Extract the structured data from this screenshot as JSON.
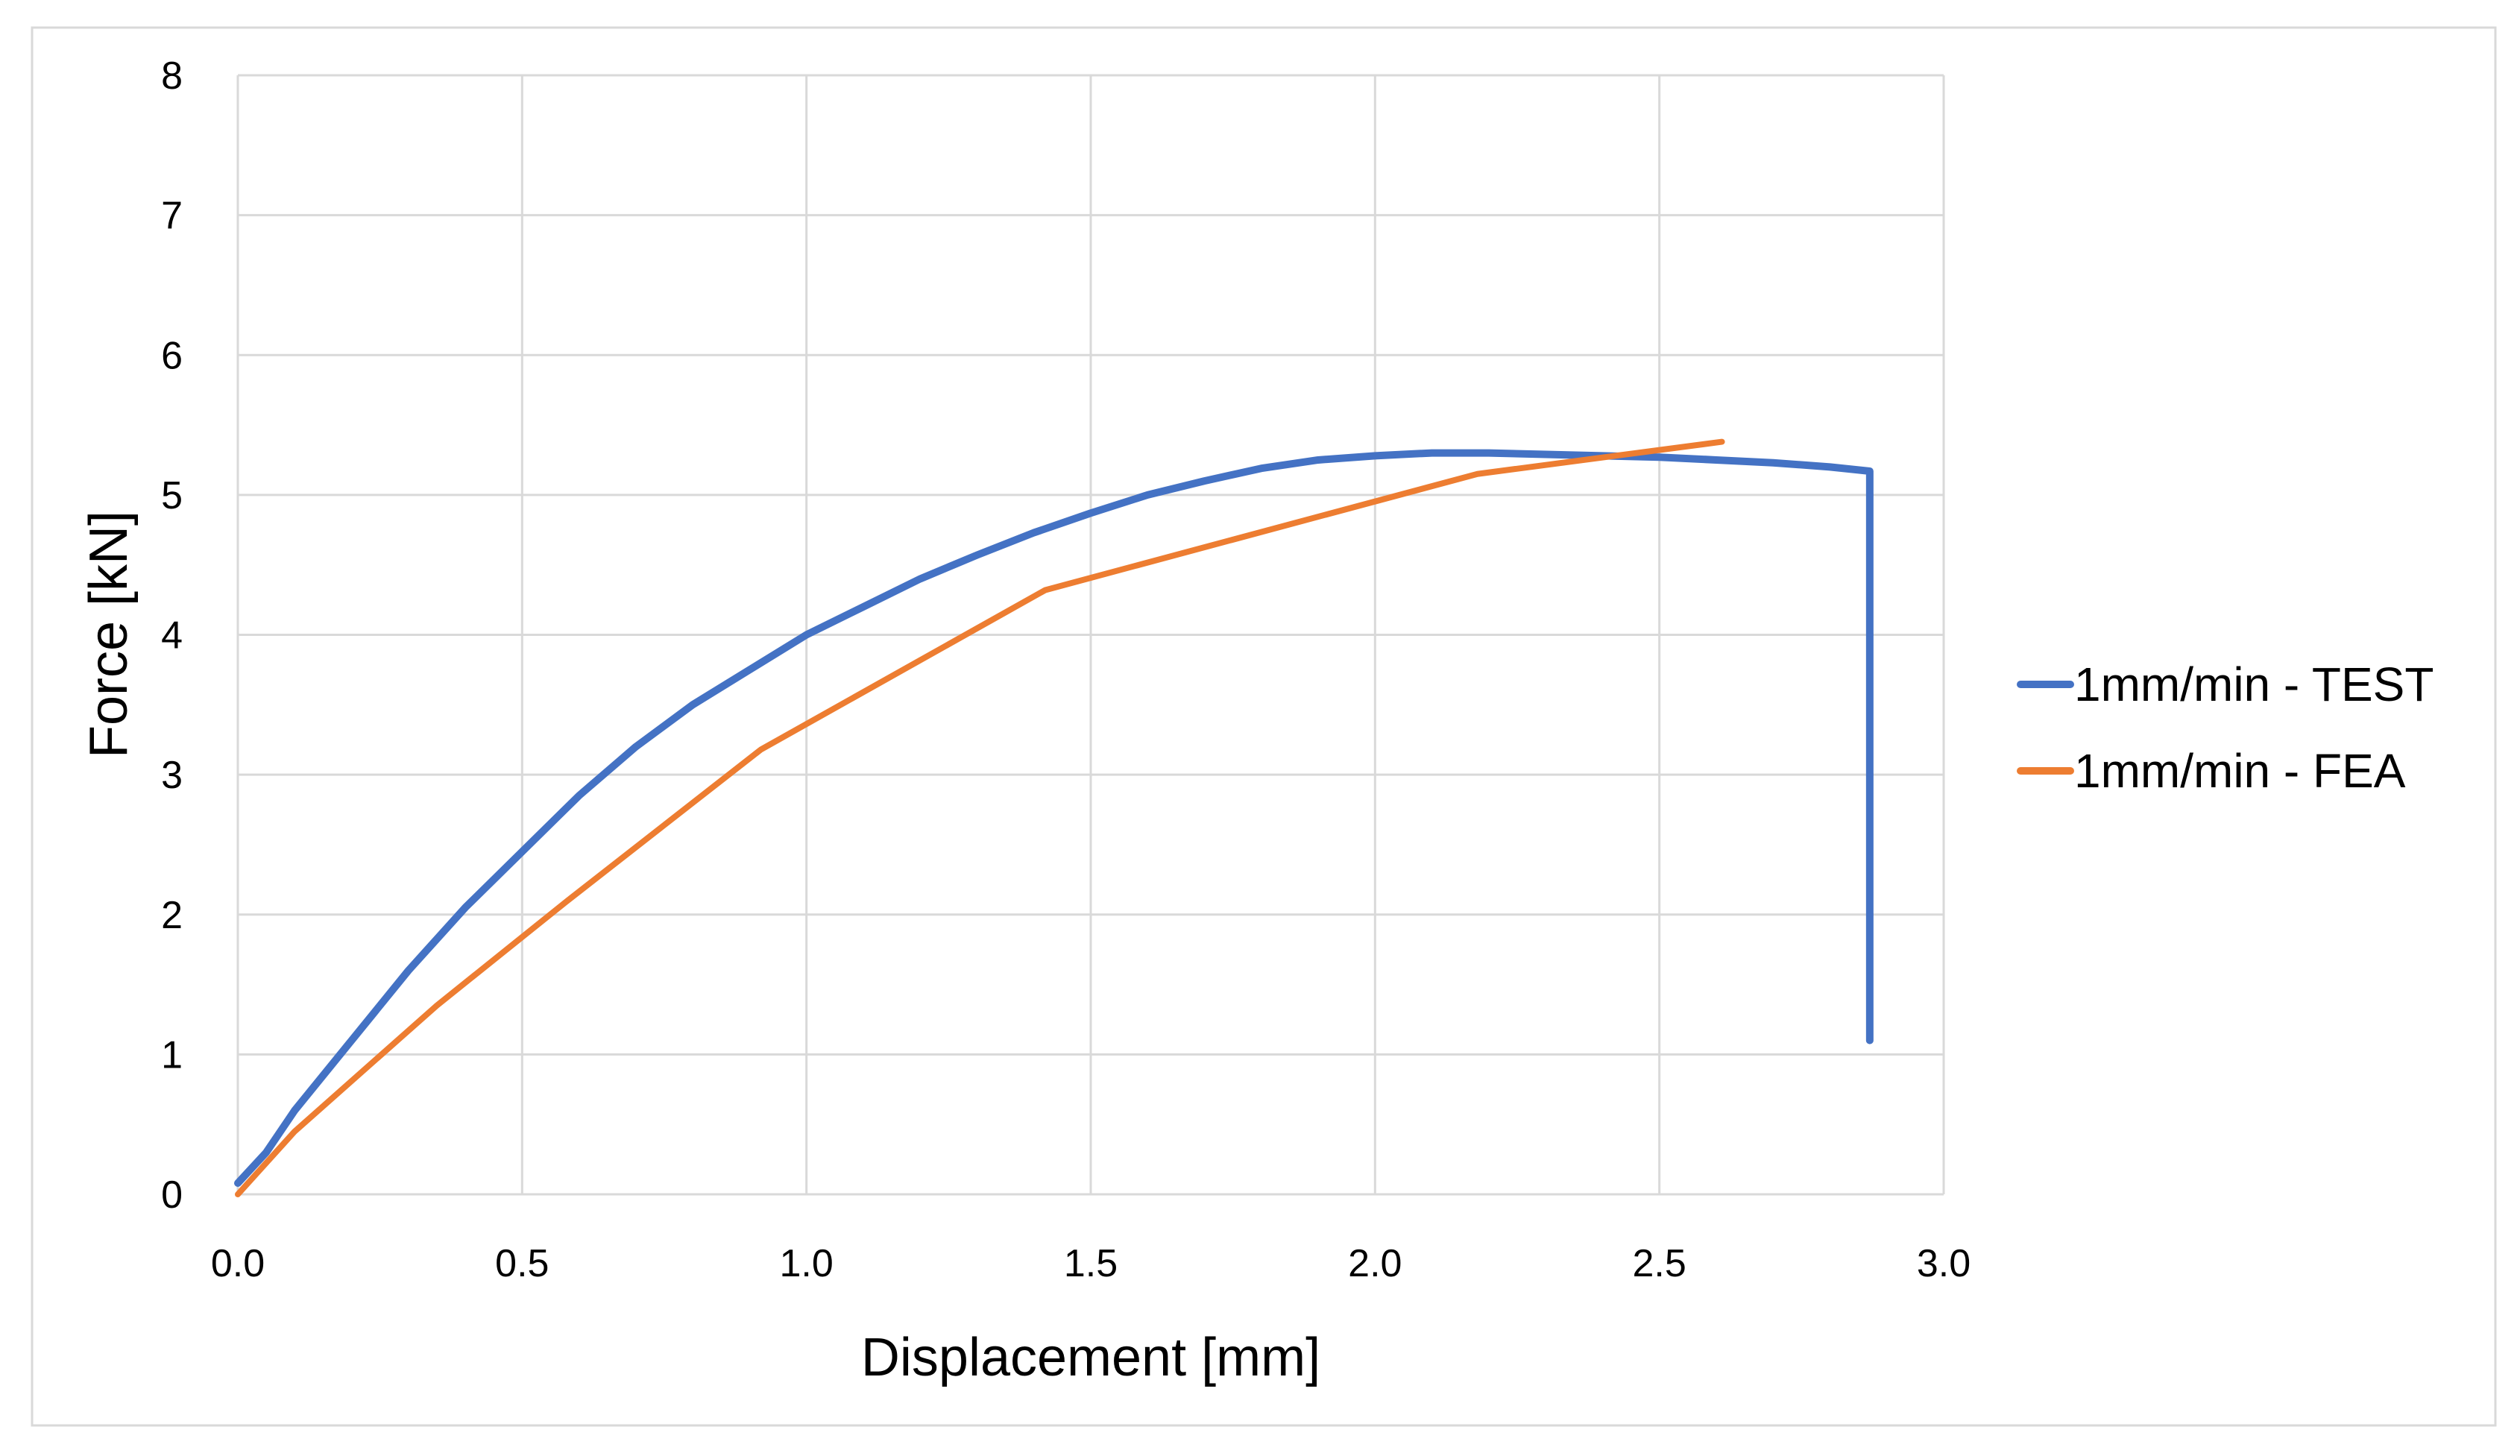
{
  "chart_data": {
    "type": "line",
    "title": "",
    "xlabel": "Displacement [mm]",
    "ylabel": "Force [kN]",
    "xlim": [
      0,
      3.0
    ],
    "ylim": [
      0,
      8
    ],
    "xticks": [
      "0.0",
      "0.5",
      "1.0",
      "1.5",
      "2.0",
      "2.5",
      "3.0"
    ],
    "yticks": [
      "0",
      "1",
      "2",
      "3",
      "4",
      "5",
      "6",
      "7",
      "8"
    ],
    "grid": true,
    "legend_position": "right",
    "series": [
      {
        "name": "1mm/min - TEST",
        "color": "#4472C4",
        "x": [
          0,
          0.05,
          0.1,
          0.2,
          0.3,
          0.4,
          0.5,
          0.6,
          0.7,
          0.8,
          0.9,
          1.0,
          1.1,
          1.2,
          1.3,
          1.4,
          1.5,
          1.6,
          1.7,
          1.8,
          1.9,
          2.0,
          2.1,
          2.2,
          2.3,
          2.4,
          2.5,
          2.6,
          2.7,
          2.8,
          2.87,
          2.87
        ],
        "y": [
          0.08,
          0.3,
          0.6,
          1.1,
          1.6,
          2.05,
          2.45,
          2.85,
          3.2,
          3.5,
          3.75,
          4.0,
          4.2,
          4.4,
          4.57,
          4.73,
          4.87,
          5.0,
          5.1,
          5.19,
          5.25,
          5.28,
          5.3,
          5.3,
          5.29,
          5.28,
          5.27,
          5.25,
          5.23,
          5.2,
          5.17,
          1.1
        ]
      },
      {
        "name": "1mm/min - FEA",
        "color": "#ED7D31",
        "x": [
          0,
          0.1,
          0.35,
          0.58,
          0.92,
          1.42,
          2.18,
          2.61
        ],
        "y": [
          0,
          0.45,
          1.35,
          2.1,
          3.18,
          4.32,
          5.15,
          5.38
        ]
      }
    ]
  }
}
